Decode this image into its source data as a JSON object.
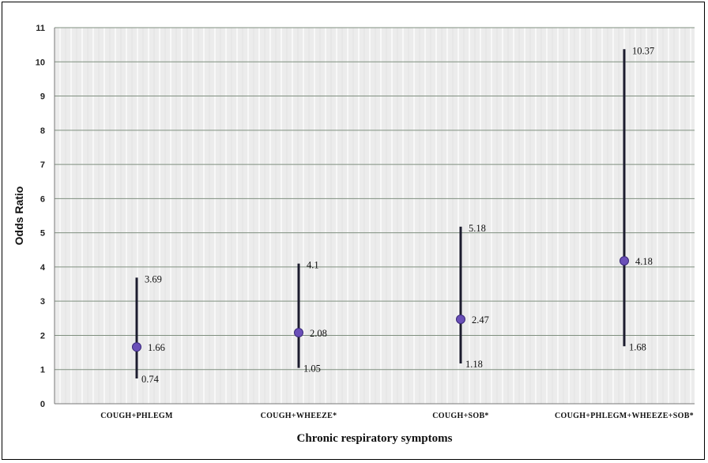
{
  "chart_data": {
    "type": "scatter",
    "title": "",
    "xlabel": "Chronic respiratory symptoms",
    "ylabel": "Odds Ratio",
    "ylim": [
      0,
      11
    ],
    "yticks": [
      "0",
      "1",
      "2",
      "3",
      "4",
      "5",
      "6",
      "7",
      "8",
      "9",
      "10",
      "11"
    ],
    "grid": true,
    "legend": "none",
    "categories": [
      "COUGH+PHLEGM",
      "COUGH+WHEEZE*",
      "COUGH+SOB*",
      "COUGH+PHLEGM+WHEEZE+SOB*"
    ],
    "series": [
      {
        "point_estimate": [
          1.66,
          2.08,
          2.47,
          4.18
        ],
        "point_labels": [
          "1.66",
          "2.08",
          "2.47",
          "4.18"
        ],
        "ci_upper": [
          3.69,
          4.1,
          5.18,
          10.37
        ],
        "ci_upper_labels": [
          "3.69",
          "4.1",
          "5.18",
          "10.37"
        ],
        "ci_lower": [
          0.74,
          1.05,
          1.18,
          1.68
        ],
        "ci_lower_labels": [
          "0.74",
          "1.05",
          "1.18",
          "1.68"
        ]
      }
    ],
    "colors": {
      "point": "#6a4fb8",
      "point_edge": "#3b2a7a",
      "ci_line": "#1c1c2e",
      "grid": "#7f8f7f",
      "plot_background": "#ededed"
    }
  }
}
